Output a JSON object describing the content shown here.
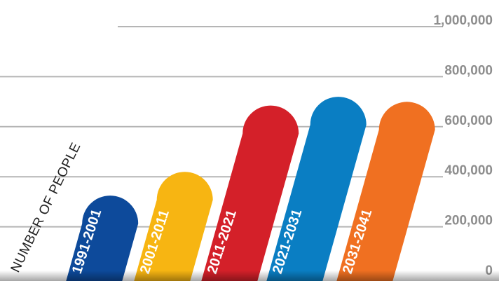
{
  "chart_data": {
    "type": "bar",
    "title": "",
    "xlabel": "",
    "ylabel": "NUMBER OF PEOPLE",
    "ylim": [
      0,
      1000000
    ],
    "ticks": [
      {
        "value": 0,
        "label": "0"
      },
      {
        "value": 200000,
        "label": "200,000"
      },
      {
        "value": 400000,
        "label": "400,000"
      },
      {
        "value": 600000,
        "label": "600,000"
      },
      {
        "value": 800000,
        "label": "800,000"
      },
      {
        "value": 1000000,
        "label": "1,000,000"
      }
    ],
    "grid": true,
    "categories": [
      "1991-2001",
      "2001-2011",
      "2011-2021",
      "2021-2031",
      "2031-2041"
    ],
    "values": [
      375000,
      470000,
      735000,
      770000,
      750000
    ],
    "colors": [
      "#0d4a9b",
      "#f7b512",
      "#d42029",
      "#0a7ec3",
      "#f07021"
    ]
  }
}
